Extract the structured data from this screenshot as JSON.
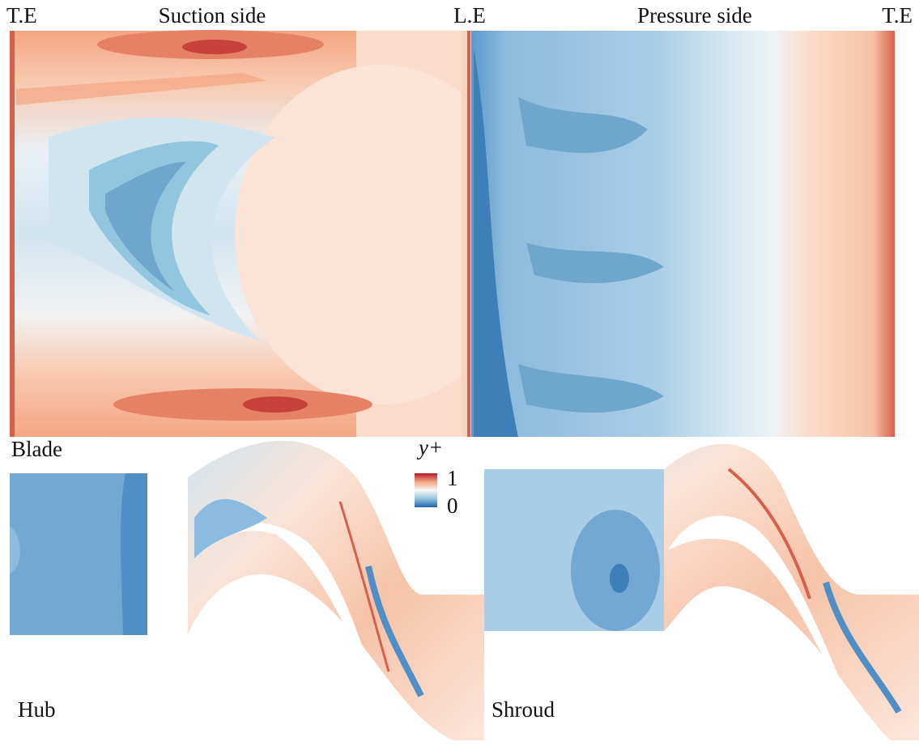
{
  "top_panel": {
    "labels": {
      "left_trailing_edge": "T.E",
      "suction_side": "Suction side",
      "leading_edge": "L.E",
      "pressure_side": "Pressure side",
      "right_trailing_edge": "T.E"
    }
  },
  "bottom_panel": {
    "blade_label": "Blade",
    "hub_label": "Hub",
    "shroud_label": "Shroud"
  },
  "colorbar": {
    "title": "y+",
    "ticks": [
      1,
      0
    ]
  }
}
